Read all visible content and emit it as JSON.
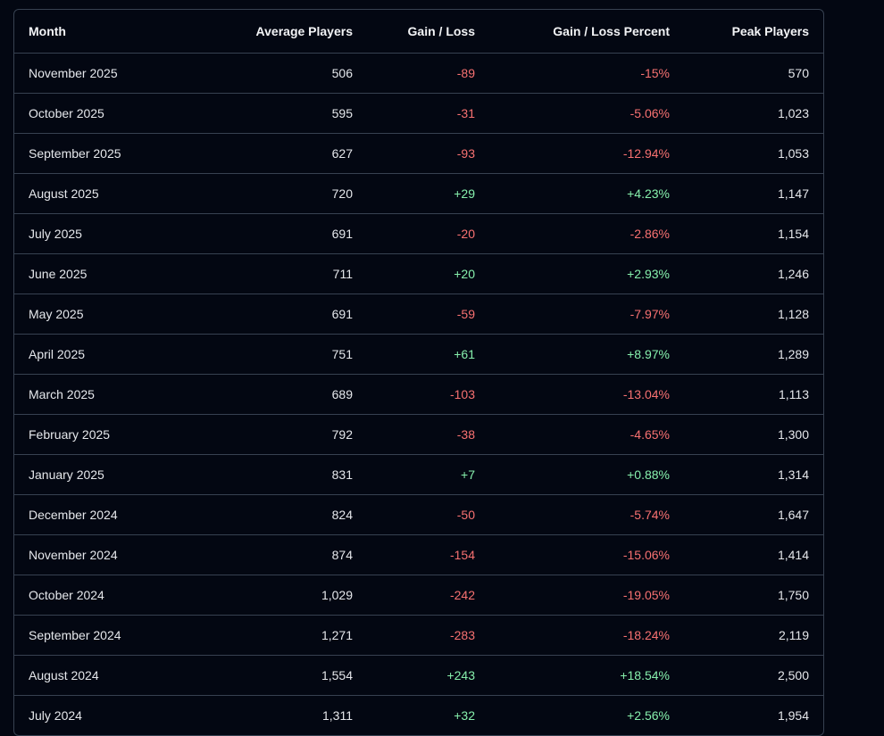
{
  "colors": {
    "background": "#030712",
    "border": "#374151",
    "negative": "#f87171",
    "positive": "#86efac",
    "text": "#e5e7eb"
  },
  "table": {
    "headers": [
      "Month",
      "Average Players",
      "Gain / Loss",
      "Gain / Loss Percent",
      "Peak Players"
    ],
    "rows": [
      {
        "month": "November 2025",
        "avg": "506",
        "gain": "-89",
        "pct": "-15%",
        "peak": "570",
        "trend": "neg"
      },
      {
        "month": "October 2025",
        "avg": "595",
        "gain": "-31",
        "pct": "-5.06%",
        "peak": "1,023",
        "trend": "neg"
      },
      {
        "month": "September 2025",
        "avg": "627",
        "gain": "-93",
        "pct": "-12.94%",
        "peak": "1,053",
        "trend": "neg"
      },
      {
        "month": "August 2025",
        "avg": "720",
        "gain": "+29",
        "pct": "+4.23%",
        "peak": "1,147",
        "trend": "pos"
      },
      {
        "month": "July 2025",
        "avg": "691",
        "gain": "-20",
        "pct": "-2.86%",
        "peak": "1,154",
        "trend": "neg"
      },
      {
        "month": "June 2025",
        "avg": "711",
        "gain": "+20",
        "pct": "+2.93%",
        "peak": "1,246",
        "trend": "pos"
      },
      {
        "month": "May 2025",
        "avg": "691",
        "gain": "-59",
        "pct": "-7.97%",
        "peak": "1,128",
        "trend": "neg"
      },
      {
        "month": "April 2025",
        "avg": "751",
        "gain": "+61",
        "pct": "+8.97%",
        "peak": "1,289",
        "trend": "pos"
      },
      {
        "month": "March 2025",
        "avg": "689",
        "gain": "-103",
        "pct": "-13.04%",
        "peak": "1,113",
        "trend": "neg"
      },
      {
        "month": "February 2025",
        "avg": "792",
        "gain": "-38",
        "pct": "-4.65%",
        "peak": "1,300",
        "trend": "neg"
      },
      {
        "month": "January 2025",
        "avg": "831",
        "gain": "+7",
        "pct": "+0.88%",
        "peak": "1,314",
        "trend": "pos"
      },
      {
        "month": "December 2024",
        "avg": "824",
        "gain": "-50",
        "pct": "-5.74%",
        "peak": "1,647",
        "trend": "neg"
      },
      {
        "month": "November 2024",
        "avg": "874",
        "gain": "-154",
        "pct": "-15.06%",
        "peak": "1,414",
        "trend": "neg"
      },
      {
        "month": "October 2024",
        "avg": "1,029",
        "gain": "-242",
        "pct": "-19.05%",
        "peak": "1,750",
        "trend": "neg"
      },
      {
        "month": "September 2024",
        "avg": "1,271",
        "gain": "-283",
        "pct": "-18.24%",
        "peak": "2,119",
        "trend": "neg"
      },
      {
        "month": "August 2024",
        "avg": "1,554",
        "gain": "+243",
        "pct": "+18.54%",
        "peak": "2,500",
        "trend": "pos"
      },
      {
        "month": "July 2024",
        "avg": "1,311",
        "gain": "+32",
        "pct": "+2.56%",
        "peak": "1,954",
        "trend": "pos"
      }
    ]
  }
}
